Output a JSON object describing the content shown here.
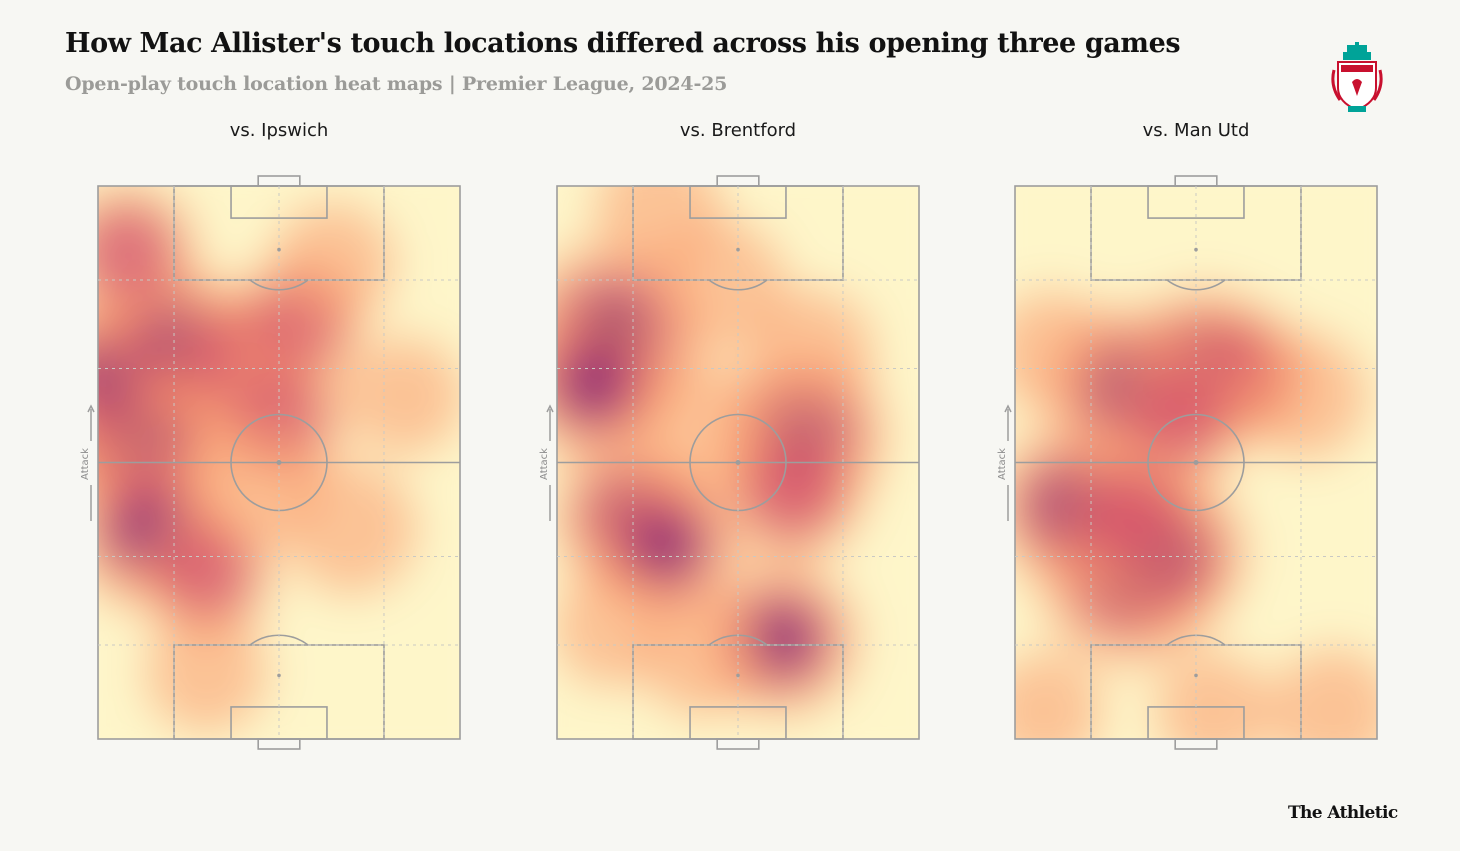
{
  "header": {
    "title": "How Mac Allister's touch locations differed across his opening three games",
    "subtitle": "Open-play touch location heat maps | Premier League, 2024-25"
  },
  "footer": {
    "brand": "The Athletic"
  },
  "labels": {
    "attack": "Attack"
  },
  "colors": {
    "background": "#f7f7f3",
    "pitch_lines": "#9d9d9d",
    "heat_low": "#fff6c2",
    "heat_mid": "#f99a6d",
    "heat_high": "#cc3f6a",
    "heat_peak": "#2d1148",
    "crest_red": "#c8102e",
    "crest_teal": "#00a398"
  },
  "chart_data": [
    {
      "type": "heatmap",
      "title": "vs. Ipswich",
      "field": {
        "x_range": [
          0,
          100
        ],
        "y_range": [
          0,
          100
        ]
      },
      "hotspots": [
        {
          "x": 6,
          "y": 59,
          "intensity": 1.0
        },
        {
          "x": 12,
          "y": 55,
          "intensity": 0.75
        },
        {
          "x": 4,
          "y": 66,
          "intensity": 0.65
        },
        {
          "x": 14,
          "y": 38,
          "intensity": 0.75
        },
        {
          "x": 22,
          "y": 72,
          "intensity": 0.6
        },
        {
          "x": 38,
          "y": 68,
          "intensity": 0.55
        },
        {
          "x": 55,
          "y": 75,
          "intensity": 0.45
        },
        {
          "x": 8,
          "y": 88,
          "intensity": 0.5
        },
        {
          "x": 50,
          "y": 58,
          "intensity": 0.45
        },
        {
          "x": 30,
          "y": 30,
          "intensity": 0.45
        },
        {
          "x": 70,
          "y": 38,
          "intensity": 0.4
        },
        {
          "x": 45,
          "y": 46,
          "intensity": 0.35
        },
        {
          "x": 65,
          "y": 86,
          "intensity": 0.3
        },
        {
          "x": 30,
          "y": 12,
          "intensity": 0.3
        },
        {
          "x": 85,
          "y": 62,
          "intensity": 0.25
        }
      ]
    },
    {
      "type": "heatmap",
      "title": "vs. Brentford",
      "field": {
        "x_range": [
          0,
          100
        ],
        "y_range": [
          0,
          100
        ]
      },
      "hotspots": [
        {
          "x": 15,
          "y": 73,
          "intensity": 1.0
        },
        {
          "x": 10,
          "y": 64,
          "intensity": 0.65
        },
        {
          "x": 68,
          "y": 55,
          "intensity": 0.8
        },
        {
          "x": 65,
          "y": 45,
          "intensity": 0.55
        },
        {
          "x": 20,
          "y": 40,
          "intensity": 0.65
        },
        {
          "x": 30,
          "y": 35,
          "intensity": 0.6
        },
        {
          "x": 62,
          "y": 18,
          "intensity": 0.65
        },
        {
          "x": 40,
          "y": 56,
          "intensity": 0.4
        },
        {
          "x": 45,
          "y": 82,
          "intensity": 0.4
        },
        {
          "x": 70,
          "y": 70,
          "intensity": 0.35
        },
        {
          "x": 28,
          "y": 96,
          "intensity": 0.35
        },
        {
          "x": 40,
          "y": 15,
          "intensity": 0.3
        },
        {
          "x": 15,
          "y": 20,
          "intensity": 0.25
        }
      ]
    },
    {
      "type": "heatmap",
      "title": "vs. Man Utd",
      "field": {
        "x_range": [
          0,
          100
        ],
        "y_range": [
          0,
          100
        ]
      },
      "hotspots": [
        {
          "x": 32,
          "y": 30,
          "intensity": 1.0
        },
        {
          "x": 42,
          "y": 34,
          "intensity": 0.7
        },
        {
          "x": 15,
          "y": 42,
          "intensity": 0.7
        },
        {
          "x": 30,
          "y": 64,
          "intensity": 0.7
        },
        {
          "x": 52,
          "y": 68,
          "intensity": 0.6
        },
        {
          "x": 62,
          "y": 66,
          "intensity": 0.5
        },
        {
          "x": 45,
          "y": 58,
          "intensity": 0.5
        },
        {
          "x": 32,
          "y": 40,
          "intensity": 0.55
        },
        {
          "x": 80,
          "y": 62,
          "intensity": 0.35
        },
        {
          "x": 88,
          "y": 5,
          "intensity": 0.35
        },
        {
          "x": 55,
          "y": 5,
          "intensity": 0.25
        },
        {
          "x": 10,
          "y": 70,
          "intensity": 0.3
        },
        {
          "x": 8,
          "y": 5,
          "intensity": 0.25
        }
      ]
    }
  ]
}
